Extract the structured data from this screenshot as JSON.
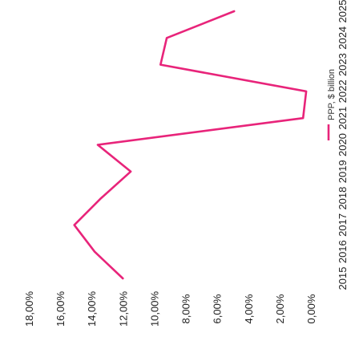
{
  "chart_data": {
    "type": "line",
    "orientation": "rotated-90-clockwise",
    "x": [
      "2015",
      "2016",
      "2017",
      "2018",
      "2019",
      "2020",
      "2021",
      "2022",
      "2023",
      "2024",
      "2025"
    ],
    "series": [
      {
        "name": "PPP, $ billion",
        "values": [
          12.0,
          13.8,
          15.1,
          13.4,
          11.5,
          13.6,
          0.5,
          0.3,
          9.6,
          9.2,
          4.9
        ]
      }
    ],
    "y_ticks": [
      "0,00%",
      "2,00%",
      "4,00%",
      "6,00%",
      "8,00%",
      "10,00%",
      "12,00%",
      "14,00%",
      "16,00%",
      "18,00%"
    ],
    "ylim": [
      0,
      18
    ],
    "legend": "top-right",
    "grid": false,
    "colors": {
      "series": "#e8247a"
    }
  }
}
